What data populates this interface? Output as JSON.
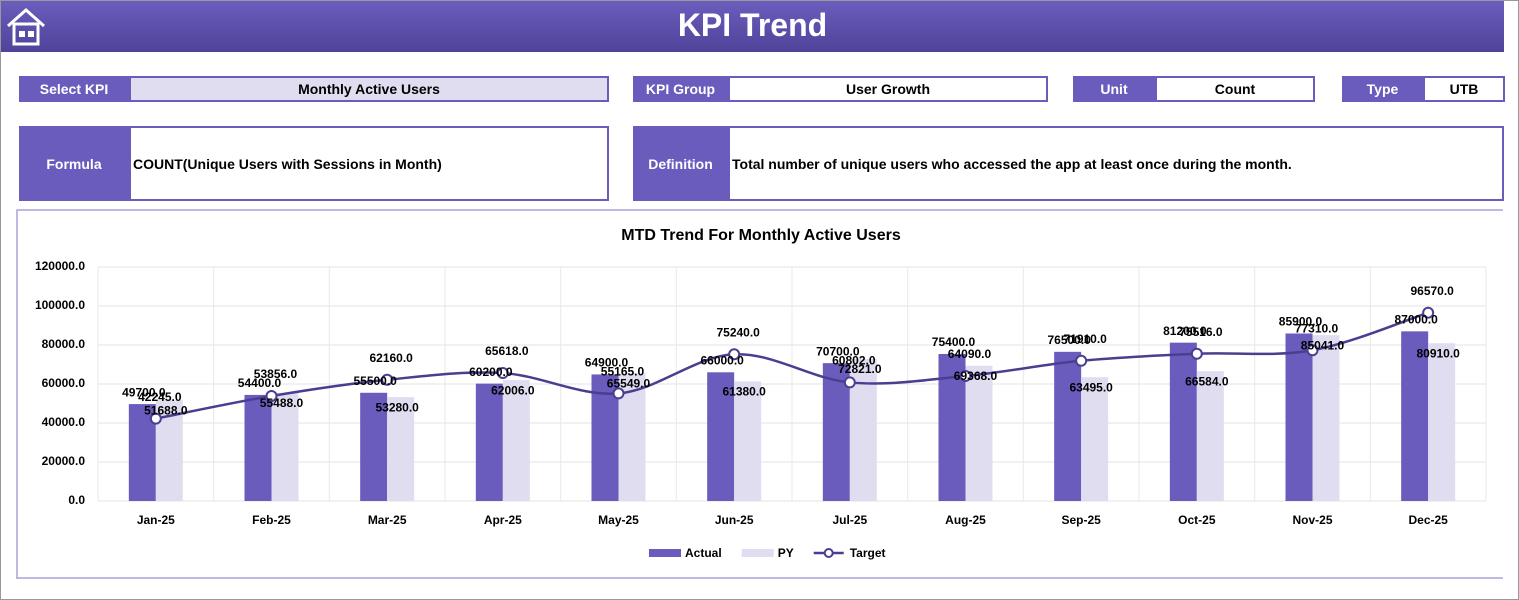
{
  "header": {
    "title": "KPI Trend"
  },
  "fields": {
    "select_kpi": {
      "label": "Select KPI",
      "value": "Monthly Active Users"
    },
    "kpi_group": {
      "label": "KPI Group",
      "value": "User Growth"
    },
    "unit": {
      "label": "Unit",
      "value": "Count"
    },
    "type": {
      "label": "Type",
      "value": "UTB"
    },
    "formula": {
      "label": "Formula",
      "value": "COUNT(Unique Users with Sessions in Month)"
    },
    "definition": {
      "label": "Definition",
      "value": "Total number of unique users who accessed the app at least once during the month."
    }
  },
  "chart_data": {
    "type": "bar-line",
    "title": "MTD Trend For Monthly Active Users",
    "categories": [
      "Jan-25",
      "Feb-25",
      "Mar-25",
      "Apr-25",
      "May-25",
      "Jun-25",
      "Jul-25",
      "Aug-25",
      "Sep-25",
      "Oct-25",
      "Nov-25",
      "Dec-25"
    ],
    "series": [
      {
        "name": "Actual",
        "type": "bar",
        "color": "#6a5cbd",
        "values": [
          49700,
          54400,
          55500,
          60200,
          64900,
          66000,
          70700,
          75400,
          76500,
          81200,
          85900,
          87000
        ],
        "value_labels": [
          "49700.0",
          "54400.0",
          "55500.0",
          "60200.0",
          "64900.0",
          "66000.0",
          "70700.0",
          "75400.0",
          "76500.0",
          "81200.0",
          "85900.0",
          "87000.0"
        ]
      },
      {
        "name": "PY",
        "type": "bar",
        "color": "#e0ddf1",
        "values": [
          51688,
          55488,
          53280,
          62006,
          65549,
          61380,
          72821,
          69368,
          63495,
          66584,
          85041,
          80910
        ],
        "value_labels": [
          "51688.0",
          "55488.0",
          "53280.0",
          "62006.0",
          "65549.0",
          "61380.0",
          "72821.0",
          "69368.0",
          "63495.0",
          "66584.0",
          "85041.0",
          "80910.0"
        ]
      },
      {
        "name": "Target",
        "type": "line",
        "color": "#4a3e91",
        "values": [
          42245,
          53856,
          62160,
          65618,
          55165,
          75240,
          60802,
          64090,
          71910,
          75516,
          77310,
          96570
        ],
        "value_labels": [
          "42245.0",
          "53856.0",
          "62160.0",
          "65618.0",
          "55165.0",
          "75240.0",
          "60802.0",
          "64090.0",
          "71910.0",
          "75516.0",
          "77310.0",
          "96570.0"
        ]
      }
    ],
    "ylim": [
      0,
      120000
    ],
    "yticks": [
      {
        "value": 0,
        "label": "0.0"
      },
      {
        "value": 20000,
        "label": "20000.0"
      },
      {
        "value": 40000,
        "label": "40000.0"
      },
      {
        "value": 60000,
        "label": "60000.0"
      },
      {
        "value": 80000,
        "label": "80000.0"
      },
      {
        "value": 100000,
        "label": "100000.0"
      },
      {
        "value": 120000,
        "label": "120000.0"
      }
    ],
    "grid": true,
    "legend": "bottom"
  }
}
